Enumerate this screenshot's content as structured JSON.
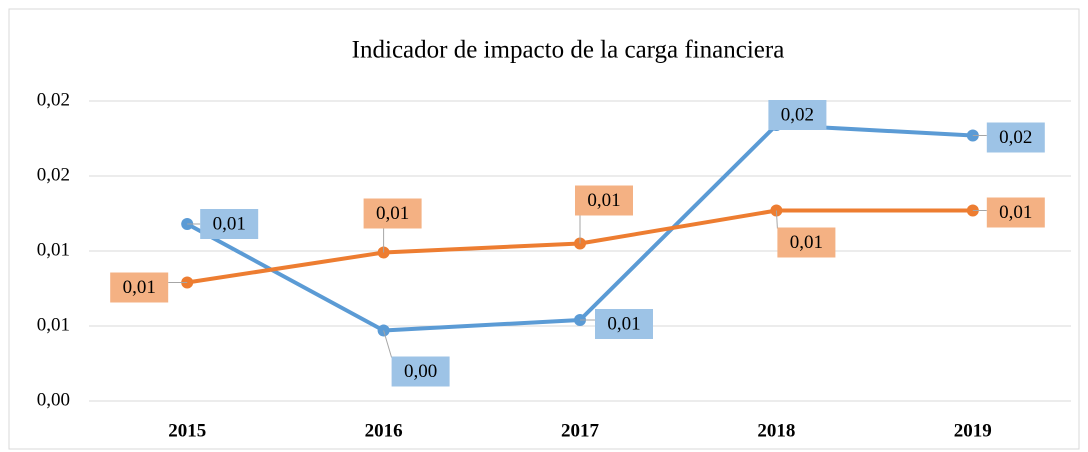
{
  "chart_data": {
    "type": "line",
    "title": "Indicador de impacto de la carga financiera",
    "categories": [
      "2015",
      "2016",
      "2017",
      "2018",
      "2019"
    ],
    "series": [
      {
        "color": "#5b9bd5",
        "values": [
          0.0118,
          0.0047,
          0.0054,
          0.0184,
          0.0177
        ],
        "value_labels": [
          "0,01",
          "0,00",
          "0,01",
          "0,02",
          "0,02"
        ]
      },
      {
        "color": "#ed7d31",
        "values": [
          0.0079,
          0.0099,
          0.0105,
          0.0127,
          0.0127
        ],
        "value_labels": [
          "0,01",
          "0,01",
          "0,01",
          "0,01",
          "0,01"
        ]
      }
    ],
    "ylim": [
      0,
      0.02
    ],
    "yticks": [
      {
        "value": 0,
        "label": "0,00"
      },
      {
        "value": 0.005,
        "label": "0,01"
      },
      {
        "value": 0.01,
        "label": "0,01"
      },
      {
        "value": 0.015,
        "label": "0,02"
      },
      {
        "value": 0.02,
        "label": "0,02"
      }
    ],
    "grid": true
  }
}
